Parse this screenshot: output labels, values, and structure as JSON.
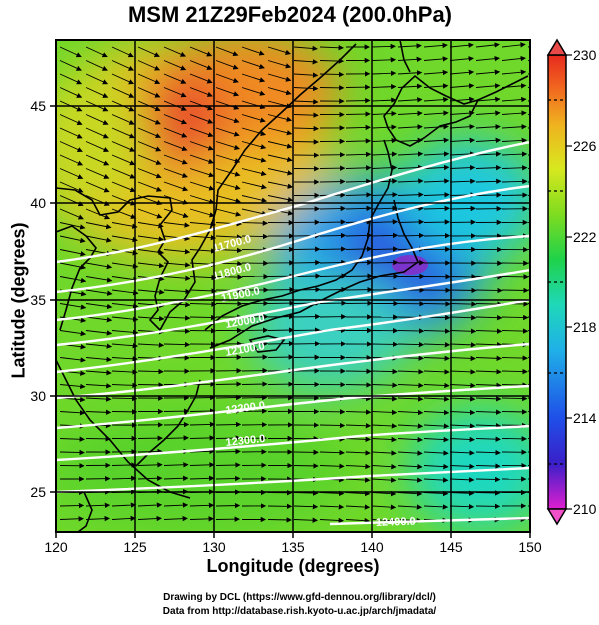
{
  "title": "MSM 21Z29Feb2024 (200.0hPa)",
  "x_axis": {
    "label": "Longitude (degrees)",
    "range": [
      120,
      150
    ],
    "ticks": [
      "120",
      "125",
      "130",
      "135",
      "140",
      "145",
      "150"
    ]
  },
  "y_axis": {
    "label": "Latitude  (degrees)",
    "range": [
      22.5,
      47.8
    ],
    "ticks": [
      "25",
      "30",
      "35",
      "40",
      "45"
    ]
  },
  "colorbar": {
    "range": [
      210,
      230
    ],
    "ticks": [
      "230",
      "226",
      "222",
      "218",
      "214",
      "210"
    ],
    "stops": [
      "#e01fd0",
      "#3a1fc8",
      "#1f4fe8",
      "#1fb0e8",
      "#1fd8b8",
      "#1fd24a",
      "#7fdc1f",
      "#d8e81f",
      "#f0b01f",
      "#f0641f",
      "#e82a1f"
    ]
  },
  "contour_labels": [
    "11700.0",
    "11800.0",
    "11900.0",
    "12000.0",
    "12100.0",
    "12200.0",
    "12300.0",
    "12400.0"
  ],
  "credits": {
    "line1": "Drawing by DCL (https://www.gfd-dennou.org/library/dcl/)",
    "line2": "Data from http://database.rish.kyoto-u.ac.jp/arch/jmadata/"
  },
  "colors": {
    "coastline": "#000000",
    "contour": "#ffffff",
    "vectors": "#000000"
  }
}
